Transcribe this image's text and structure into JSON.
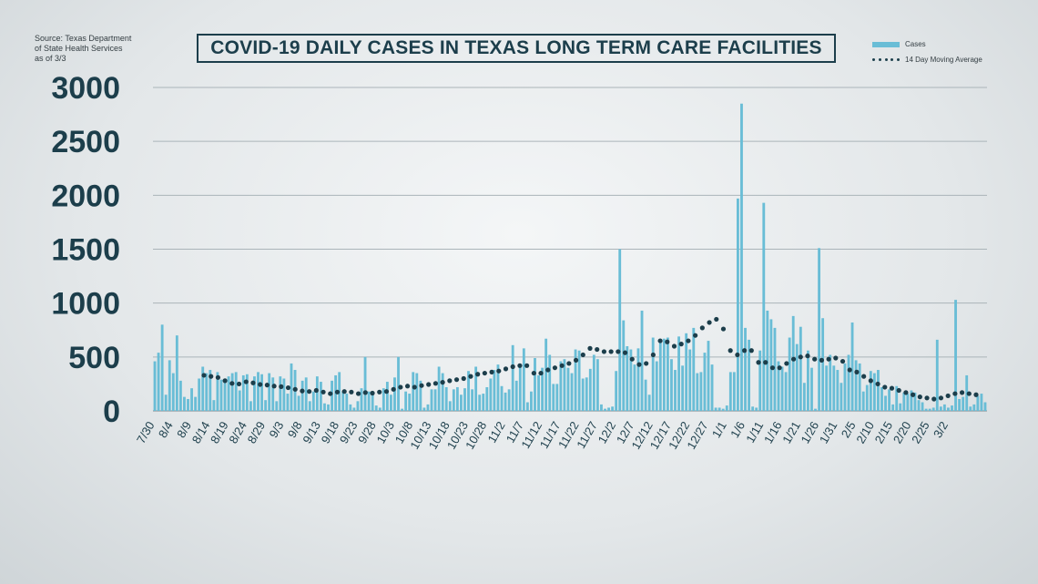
{
  "source_note": "Source: Texas Department\nof State Health Services\nas of 3/3",
  "colors": {
    "bar": "#69bdd6",
    "avg": "#1c3e4b",
    "grid": "#aab4b9",
    "text": "#1c3e4b"
  },
  "chart_data": {
    "type": "bar",
    "title": "COVID-19 DAILY CASES IN TEXAS LONG TERM CARE FACILITIES",
    "xlabel": "",
    "ylabel": "",
    "ylim": [
      0,
      3000
    ],
    "yticks": [
      0,
      500,
      1000,
      1500,
      2000,
      2500,
      3000
    ],
    "grid": true,
    "legend_position": "top-right",
    "start_date": "7/30",
    "x_tick_labels": [
      "7/30",
      "8/4",
      "8/9",
      "8/14",
      "8/19",
      "8/24",
      "8/29",
      "9/3",
      "9/8",
      "9/13",
      "9/18",
      "9/23",
      "9/28",
      "10/3",
      "10/8",
      "10/13",
      "10/18",
      "10/23",
      "10/28",
      "11/2",
      "11/7",
      "11/12",
      "11/17",
      "11/22",
      "11/27",
      "12/2",
      "12/7",
      "12/12",
      "12/17",
      "12/22",
      "12/27",
      "1/1",
      "1/6",
      "1/11",
      "1/16",
      "1/21",
      "1/26",
      "1/31",
      "2/5",
      "2/10",
      "2/15",
      "2/20",
      "2/25",
      "3/2"
    ],
    "series": [
      {
        "name": "Cases",
        "type": "bar",
        "values": [
          460,
          540,
          800,
          150,
          470,
          350,
          700,
          280,
          130,
          110,
          210,
          130,
          300,
          410,
          350,
          380,
          100,
          360,
          290,
          300,
          320,
          350,
          360,
          190,
          330,
          340,
          90,
          320,
          360,
          340,
          100,
          350,
          310,
          90,
          320,
          300,
          160,
          440,
          380,
          140,
          280,
          310,
          90,
          180,
          320,
          270,
          70,
          60,
          280,
          330,
          360,
          180,
          160,
          60,
          30,
          90,
          210,
          500,
          180,
          170,
          50,
          30,
          210,
          270,
          150,
          310,
          500,
          20,
          180,
          160,
          360,
          350,
          280,
          30,
          60,
          200,
          200,
          410,
          350,
          220,
          90,
          200,
          220,
          150,
          210,
          370,
          200,
          410,
          150,
          160,
          220,
          300,
          380,
          430,
          230,
          170,
          200,
          610,
          280,
          420,
          580,
          80,
          180,
          490,
          330,
          400,
          670,
          520,
          250,
          250,
          460,
          480,
          400,
          350,
          570,
          560,
          300,
          310,
          390,
          520,
          480,
          60,
          20,
          30,
          40,
          370,
          1500,
          840,
          600,
          570,
          430,
          580,
          930,
          290,
          150,
          680,
          460,
          660,
          670,
          680,
          480,
          380,
          690,
          420,
          720,
          570,
          770,
          350,
          360,
          540,
          650,
          430,
          30,
          30,
          20,
          50,
          360,
          360,
          1970,
          2850,
          770,
          660,
          40,
          30,
          560,
          1930,
          930,
          850,
          770,
          460,
          410,
          360,
          680,
          880,
          620,
          780,
          260,
          560,
          400,
          20,
          1510,
          860,
          420,
          520,
          420,
          380,
          260,
          440,
          520,
          820,
          470,
          440,
          180,
          240,
          370,
          350,
          380,
          220,
          140,
          200,
          60,
          230,
          70,
          170,
          160,
          190,
          170,
          100,
          80,
          20,
          20,
          30,
          660,
          40,
          60,
          30,
          50,
          1030,
          110,
          130,
          330,
          40,
          60,
          140,
          160,
          80
        ]
      },
      {
        "name": "14 Day Moving Average",
        "type": "dotted-line",
        "values": [
          330,
          320,
          310,
          280,
          255,
          250,
          270,
          260,
          245,
          240,
          230,
          225,
          215,
          200,
          185,
          180,
          190,
          175,
          160,
          175,
          180,
          175,
          160,
          170,
          165,
          175,
          180,
          200,
          220,
          230,
          220,
          235,
          245,
          255,
          265,
          280,
          290,
          300,
          320,
          340,
          350,
          360,
          370,
          390,
          410,
          420,
          420,
          350,
          350,
          380,
          400,
          420,
          440,
          470,
          520,
          580,
          570,
          550,
          550,
          550,
          540,
          480,
          430,
          440,
          520,
          650,
          640,
          600,
          620,
          650,
          700,
          770,
          820,
          850,
          760,
          560,
          520,
          560,
          560,
          450,
          450,
          400,
          400,
          440,
          480,
          500,
          510,
          480,
          470,
          480,
          490,
          460,
          380,
          360,
          320,
          280,
          250,
          220,
          210,
          190,
          170,
          150,
          130,
          120,
          110,
          120,
          140,
          160,
          170,
          160,
          150
        ]
      }
    ]
  }
}
